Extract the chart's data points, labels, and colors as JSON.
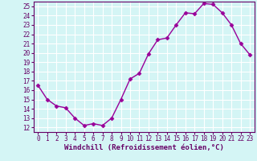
{
  "x": [
    0,
    1,
    2,
    3,
    4,
    5,
    6,
    7,
    8,
    9,
    10,
    11,
    12,
    13,
    14,
    15,
    16,
    17,
    18,
    19,
    20,
    21,
    22,
    23
  ],
  "y": [
    16.5,
    15.0,
    14.3,
    14.1,
    13.0,
    12.2,
    12.4,
    12.2,
    13.0,
    15.0,
    17.2,
    17.8,
    19.9,
    21.4,
    21.6,
    23.0,
    24.3,
    24.2,
    25.3,
    25.2,
    24.3,
    23.0,
    21.0,
    19.8
  ],
  "line_color": "#990099",
  "marker": "D",
  "markersize": 2.5,
  "linewidth": 1.0,
  "xlabel": "Windchill (Refroidissement éolien,°C)",
  "xlabel_fontsize": 6.5,
  "background_color": "#d4f5f5",
  "grid_color": "#ffffff",
  "ylim": [
    11.5,
    25.5
  ],
  "xlim": [
    -0.5,
    23.5
  ],
  "yticks": [
    12,
    13,
    14,
    15,
    16,
    17,
    18,
    19,
    20,
    21,
    22,
    23,
    24,
    25
  ],
  "xticks": [
    0,
    1,
    2,
    3,
    4,
    5,
    6,
    7,
    8,
    9,
    10,
    11,
    12,
    13,
    14,
    15,
    16,
    17,
    18,
    19,
    20,
    21,
    22,
    23
  ],
  "tick_fontsize": 5.5,
  "spine_color": "#660066",
  "text_color": "#660066"
}
